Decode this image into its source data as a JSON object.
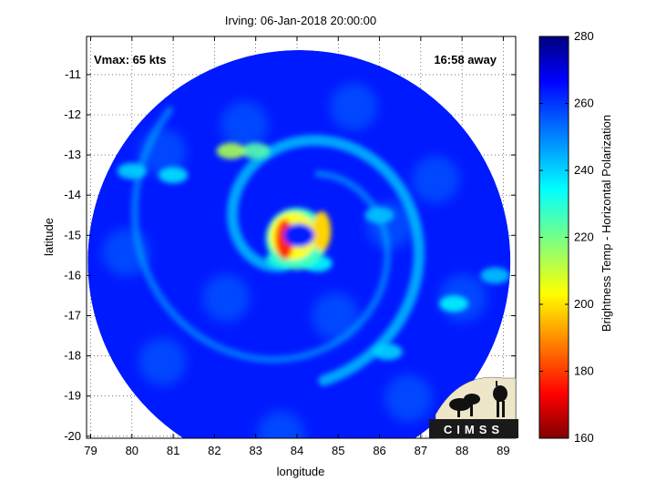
{
  "chart_data": {
    "type": "heatmap",
    "title": "Irving: 06-Jan-2018 20:00:00",
    "xlabel": "longitude",
    "ylabel": "latitude",
    "xlim": [
      78.9,
      89.3
    ],
    "ylim": [
      -20.05,
      -10.05
    ],
    "x_ticks": [
      79,
      80,
      81,
      82,
      83,
      84,
      85,
      86,
      87,
      88,
      89
    ],
    "y_ticks": [
      -11,
      -12,
      -13,
      -14,
      -15,
      -16,
      -17,
      -18,
      -19,
      -20
    ],
    "grid": "dotted",
    "annotations": {
      "vmax": "Vmax: 65 kts",
      "away": "16:58 away"
    },
    "colorbar": {
      "label": "Brightness Temp - Horizontal Polarization",
      "range": [
        160,
        280
      ],
      "ticks": [
        160,
        180,
        200,
        220,
        240,
        260,
        280
      ],
      "colormap": "jet"
    },
    "storm_center": {
      "lon": 83.95,
      "lat": -14.95
    },
    "swath_center": {
      "lon": 84.05,
      "lat": -15.65
    },
    "background_temp": 262,
    "features": [
      {
        "kind": "eyewall",
        "lon": 83.7,
        "lat": -15.1,
        "temp": 180
      },
      {
        "kind": "eyewall",
        "lon": 84.6,
        "lat": -14.9,
        "temp": 200
      },
      {
        "kind": "eye",
        "lon": 84.05,
        "lat": -15.0,
        "temp": 262
      },
      {
        "kind": "band",
        "lon": 83.6,
        "lat": -15.6,
        "temp": 232
      },
      {
        "kind": "band",
        "lon": 84.5,
        "lat": -15.7,
        "temp": 235
      },
      {
        "kind": "band",
        "lon": 83.0,
        "lat": -12.9,
        "temp": 225
      },
      {
        "kind": "band",
        "lon": 82.4,
        "lat": -12.9,
        "temp": 215
      },
      {
        "kind": "band",
        "lon": 81.0,
        "lat": -13.5,
        "temp": 238
      },
      {
        "kind": "band",
        "lon": 80.0,
        "lat": -13.4,
        "temp": 240
      },
      {
        "kind": "band",
        "lon": 86.0,
        "lat": -14.5,
        "temp": 242
      },
      {
        "kind": "band",
        "lon": 87.8,
        "lat": -16.7,
        "temp": 236
      },
      {
        "kind": "band",
        "lon": 86.2,
        "lat": -17.9,
        "temp": 240
      },
      {
        "kind": "band",
        "lon": 88.8,
        "lat": -16.0,
        "temp": 242
      }
    ]
  },
  "logo": {
    "text": "CIMSS"
  }
}
